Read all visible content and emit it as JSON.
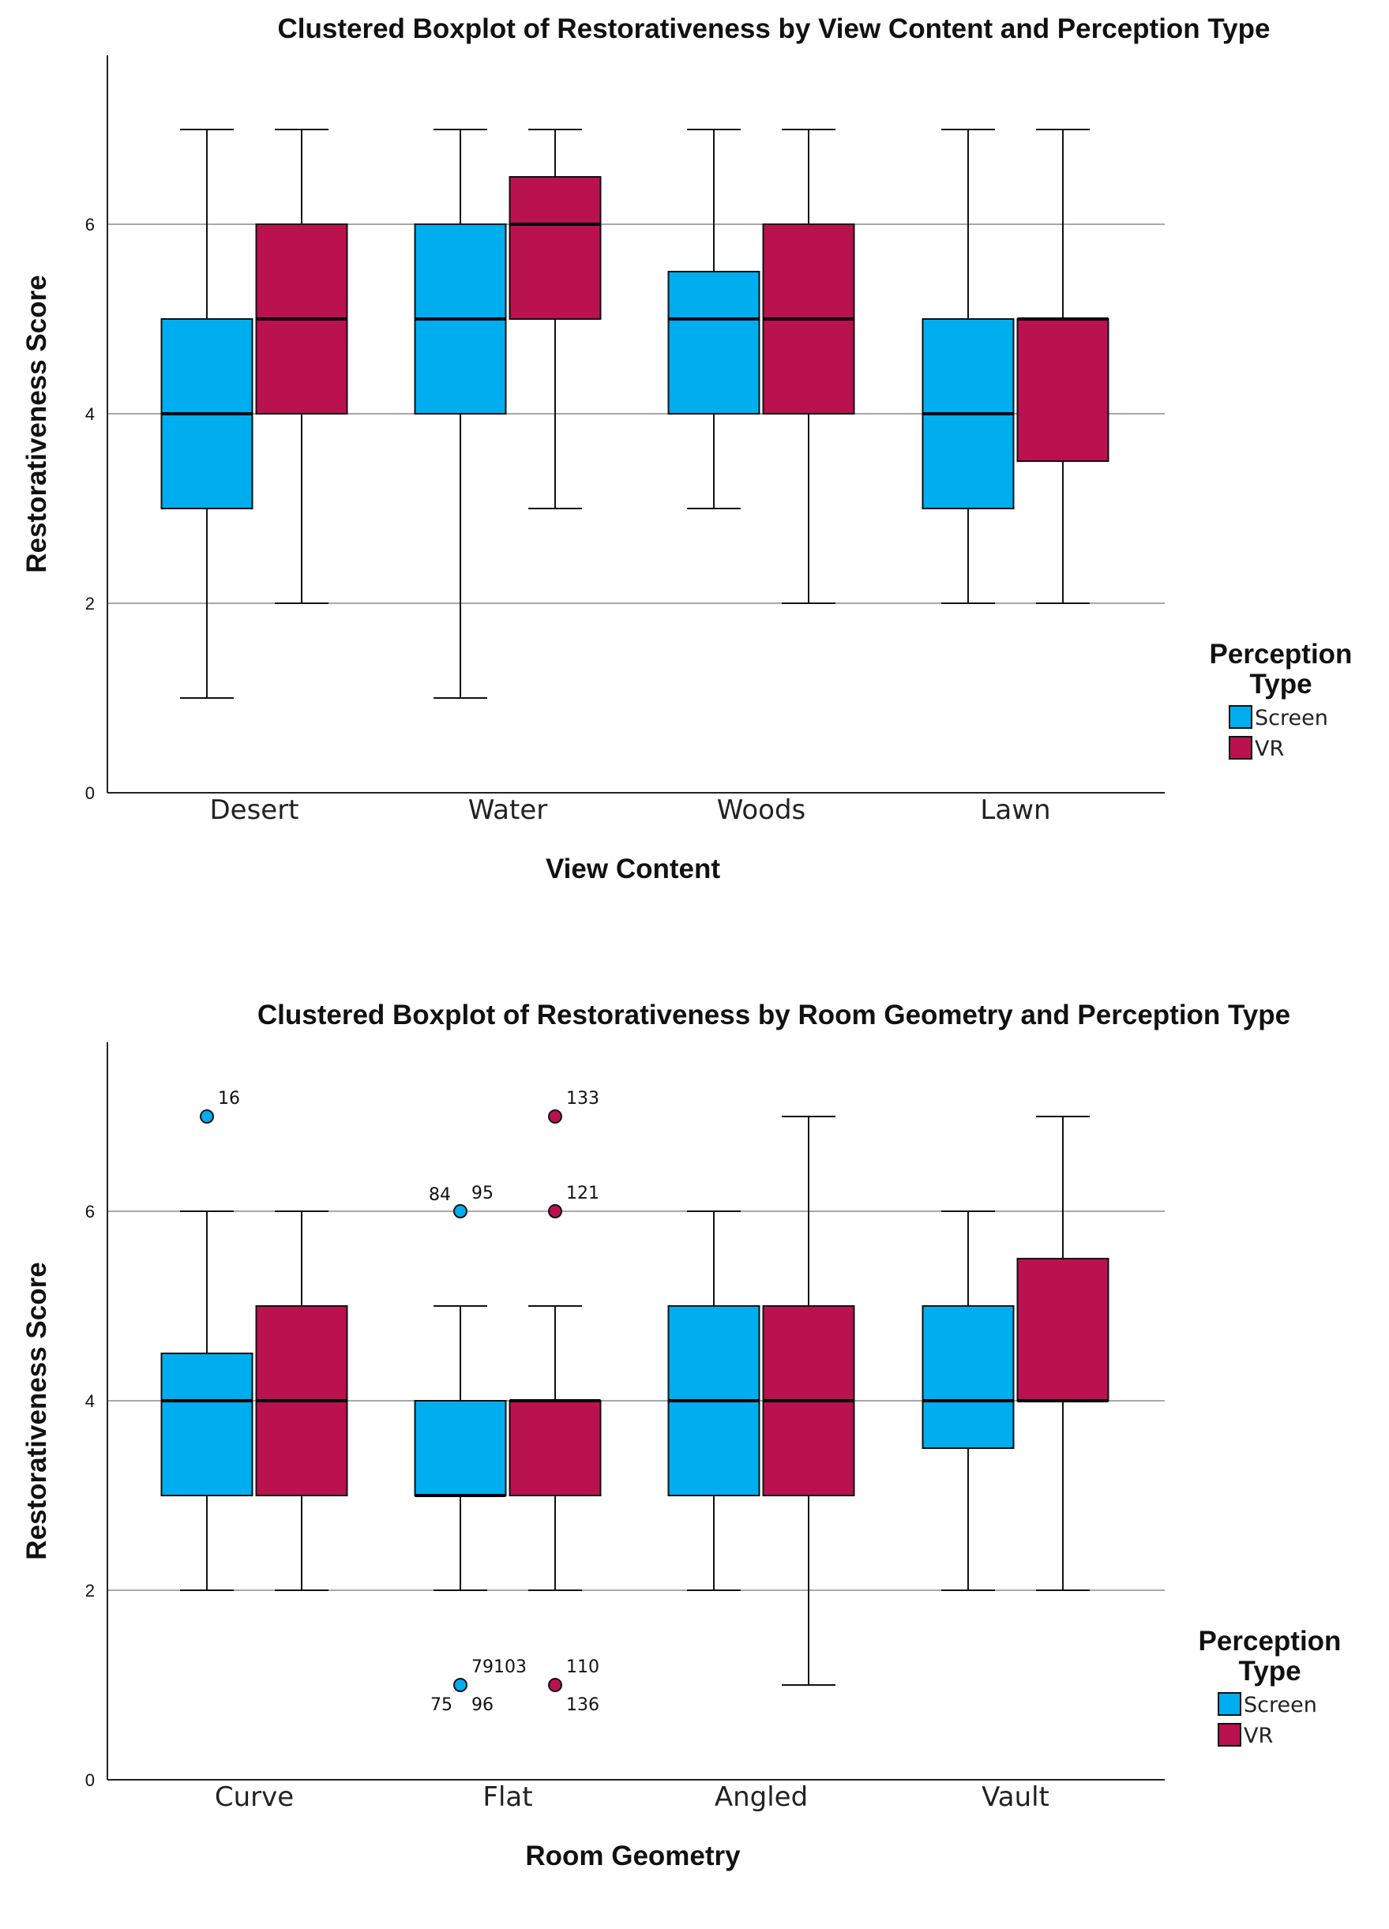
{
  "chart_data": [
    {
      "type": "boxplot",
      "title": "Clustered Boxplot of Restorativeness by View Content and Perception Type",
      "xlabel": "View Content",
      "ylabel": "Restorativeness Score",
      "ylim": [
        0,
        7.8
      ],
      "yticks": [
        0,
        2,
        4,
        6
      ],
      "grid": true,
      "legend": {
        "title_line1": "Perception",
        "title_line2": "Type",
        "position": "right"
      },
      "categories": [
        "Desert",
        "Water",
        "Woods",
        "Lawn"
      ],
      "series": [
        {
          "name": "Screen",
          "color": "#00AEEF",
          "boxes": [
            {
              "min": 1,
              "q1": 3,
              "median": 4,
              "q3": 5,
              "max": 7,
              "outliers": []
            },
            {
              "min": 1,
              "q1": 4,
              "median": 5,
              "q3": 6,
              "max": 7,
              "outliers": []
            },
            {
              "min": 3,
              "q1": 4,
              "median": 5,
              "q3": 5.5,
              "max": 7,
              "outliers": []
            },
            {
              "min": 2,
              "q1": 3,
              "median": 4,
              "q3": 5,
              "max": 7,
              "outliers": []
            }
          ]
        },
        {
          "name": "VR",
          "color": "#B9124F",
          "boxes": [
            {
              "min": 2,
              "q1": 4,
              "median": 5,
              "q3": 6,
              "max": 7,
              "outliers": []
            },
            {
              "min": 3,
              "q1": 5,
              "median": 6,
              "q3": 6.5,
              "max": 7,
              "outliers": []
            },
            {
              "min": 2,
              "q1": 4,
              "median": 5,
              "q3": 6,
              "max": 7,
              "outliers": []
            },
            {
              "min": 2,
              "q1": 3.5,
              "median": 5,
              "q3": 5,
              "max": 7,
              "outliers": []
            }
          ]
        }
      ]
    },
    {
      "type": "boxplot",
      "title": "Clustered Boxplot of Restorativeness by Room Geometry and Perception Type",
      "xlabel": "Room Geometry",
      "ylabel": "Restorativeness Score",
      "ylim": [
        0,
        7.8
      ],
      "yticks": [
        0,
        2,
        4,
        6
      ],
      "grid": true,
      "legend": {
        "title_line1": "Perception",
        "title_line2": "Type",
        "position": "right"
      },
      "categories": [
        "Curve",
        "Flat",
        "Angled",
        "Vault"
      ],
      "series": [
        {
          "name": "Screen",
          "color": "#00AEEF",
          "boxes": [
            {
              "min": 2,
              "q1": 3,
              "median": 4,
              "q3": 4.5,
              "max": 6,
              "outliers": [
                {
                  "value": 7,
                  "label": "16",
                  "label_pos": "right-above"
                }
              ]
            },
            {
              "min": 2,
              "q1": 3,
              "median": 3,
              "q3": 4,
              "max": 5,
              "outliers": [
                {
                  "value": 6,
                  "label": "84",
                  "label_pos": "left-above"
                },
                {
                  "value": 6,
                  "label": "95",
                  "label_pos": "right-above"
                },
                {
                  "value": 1,
                  "label": "79103",
                  "label_pos": "right-above"
                },
                {
                  "value": 1,
                  "label": "75",
                  "label_pos": "left-below"
                },
                {
                  "value": 1,
                  "label": "96",
                  "label_pos": "right-below"
                }
              ]
            },
            {
              "min": 2,
              "q1": 3,
              "median": 4,
              "q3": 5,
              "max": 6,
              "outliers": []
            },
            {
              "min": 2,
              "q1": 3.5,
              "median": 4,
              "q3": 5,
              "max": 6,
              "outliers": []
            }
          ]
        },
        {
          "name": "VR",
          "color": "#B9124F",
          "boxes": [
            {
              "min": 2,
              "q1": 3,
              "median": 4,
              "q3": 5,
              "max": 6,
              "outliers": []
            },
            {
              "min": 2,
              "q1": 3,
              "median": 4,
              "q3": 4,
              "max": 5,
              "outliers": [
                {
                  "value": 7,
                  "label": "133",
                  "label_pos": "right-above"
                },
                {
                  "value": 6,
                  "label": "121",
                  "label_pos": "right-above"
                },
                {
                  "value": 1,
                  "label": "110",
                  "label_pos": "right-above"
                },
                {
                  "value": 1,
                  "label": "136",
                  "label_pos": "right-below"
                }
              ]
            },
            {
              "min": 1,
              "q1": 3,
              "median": 4,
              "q3": 5,
              "max": 7,
              "outliers": []
            },
            {
              "min": 2,
              "q1": 4,
              "median": 4,
              "q3": 5.5,
              "max": 7,
              "outliers": []
            }
          ]
        }
      ]
    }
  ]
}
